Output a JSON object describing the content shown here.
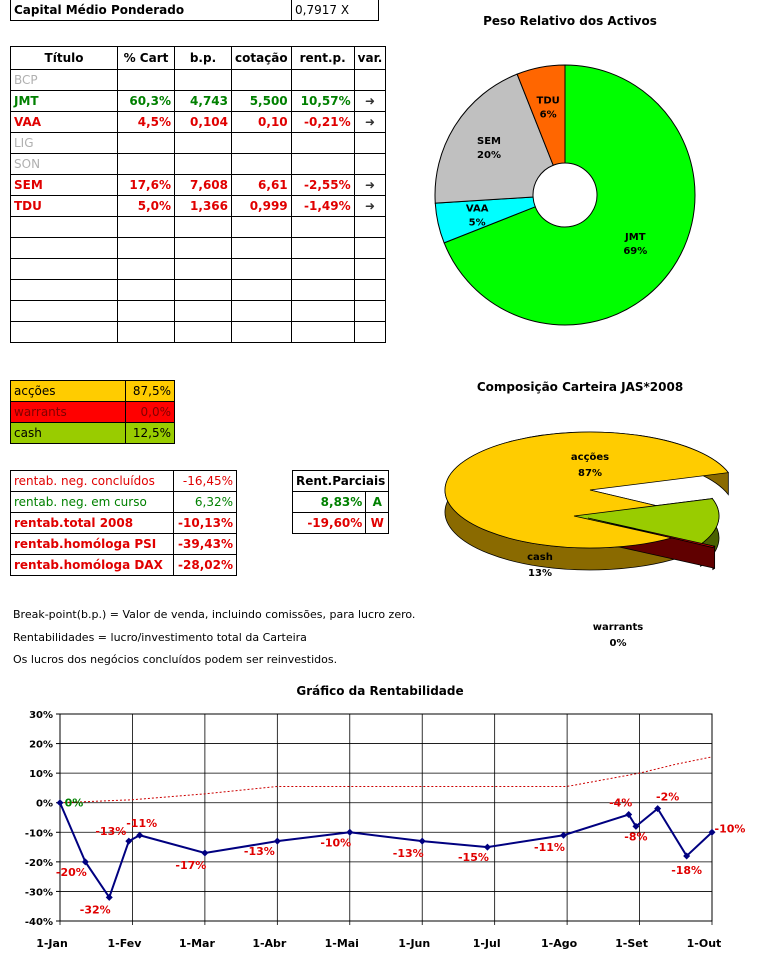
{
  "capital": {
    "label": "Capital Médio Ponderado",
    "value": "0,7917",
    "unit": "X"
  },
  "holdings": {
    "headers": [
      "Título",
      "% Cart",
      "b.p.",
      "cotação",
      "rent.p.",
      "var."
    ],
    "rows": [
      {
        "name": "BCP",
        "cart": "",
        "bp": "",
        "cot": "",
        "rent": "",
        "var": "",
        "style": "grey"
      },
      {
        "name": "JMT",
        "cart": "60,3%",
        "bp": "4,743",
        "cot": "5,500",
        "rent": "10,57%",
        "var": "➜",
        "style": "green"
      },
      {
        "name": "VAA",
        "cart": "4,5%",
        "bp": "0,104",
        "cot": "0,10",
        "rent": "-0,21%",
        "var": "➜",
        "style": "red"
      },
      {
        "name": "LIG",
        "cart": "",
        "bp": "",
        "cot": "",
        "rent": "",
        "var": "",
        "style": "grey"
      },
      {
        "name": "SON",
        "cart": "",
        "bp": "",
        "cot": "",
        "rent": "",
        "var": "",
        "style": "grey"
      },
      {
        "name": "SEM",
        "cart": "17,6%",
        "bp": "7,608",
        "cot": "6,61",
        "rent": "-2,55%",
        "var": "➜",
        "style": "red"
      },
      {
        "name": "TDU",
        "cart": "5,0%",
        "bp": "1,366",
        "cot": "0,999",
        "rent": "-1,49%",
        "var": "➜",
        "style": "red"
      }
    ],
    "empty_rows": 6
  },
  "allocation": [
    {
      "label": "acções",
      "value": "87,5%",
      "bg": "#ffcc00",
      "fg": "#000000"
    },
    {
      "label": "warrants",
      "value": "0,0%",
      "bg": "#ff0000",
      "fg": "#800000"
    },
    {
      "label": "cash",
      "value": "12,5%",
      "bg": "#99cc00",
      "fg": "#000000"
    }
  ],
  "returns": [
    {
      "label": "rentab. neg. concluídos",
      "value": "-16,45%",
      "color": "#e00000",
      "bold": false
    },
    {
      "label": "rentab. neg. em curso",
      "value": "6,32%",
      "color": "#008000",
      "bold": false
    },
    {
      "label": "rentab.total 2008",
      "value": "-10,13%",
      "color": "#e00000",
      "bold": true
    },
    {
      "label": "rentab.homóloga PSI",
      "value": "-39,43%",
      "color": "#e00000",
      "bold": true
    },
    {
      "label": "rentab.homóloga DAX",
      "value": "-28,02%",
      "color": "#e00000",
      "bold": true
    }
  ],
  "partials": {
    "title": "Rent.Parciais",
    "rows": [
      {
        "value": "8,83%",
        "tag": "A",
        "color": "#008000"
      },
      {
        "value": "-19,60%",
        "tag": "W",
        "color": "#e00000"
      }
    ]
  },
  "notes": [
    "Break-point(b.p.) = Valor de venda, incluindo comissões, para lucro zero.",
    "Rentabilidades = lucro/investimento total da Carteira",
    "Os lucros dos negócios concluídos podem ser reinvestidos."
  ],
  "chart_data": [
    {
      "type": "pie",
      "title": "Peso Relativo dos Activos",
      "labels": [
        "JMT",
        "VAA",
        "SEM",
        "TDU"
      ],
      "values": [
        69,
        5,
        20,
        6
      ],
      "value_labels": [
        "69%",
        "5%",
        "20%",
        "6%"
      ],
      "colors": [
        "#00ff00",
        "#00ffff",
        "#c0c0c0",
        "#ff6600"
      ],
      "donut": true
    },
    {
      "type": "pie",
      "title": "Composição Carteira JAS*2008",
      "labels": [
        "acções",
        "cash",
        "warrants"
      ],
      "values": [
        87,
        13,
        0
      ],
      "value_labels": [
        "87%",
        "13%",
        "0%"
      ],
      "colors": [
        "#ffcc00",
        "#99cc00",
        "#cc0000"
      ],
      "style": "3d-exploded"
    },
    {
      "type": "line",
      "title": "Gráfico da Rentabilidade",
      "x_ticks": [
        "1-Jan",
        "1-Fev",
        "1-Mar",
        "1-Abr",
        "1-Mai",
        "1-Jun",
        "1-Jul",
        "1-Ago",
        "1-Set",
        "1-Out"
      ],
      "ylim": [
        -40,
        30
      ],
      "y_ticks": [
        "30%",
        "20%",
        "10%",
        "0%",
        "-10%",
        "-20%",
        "-30%",
        "-40%"
      ],
      "grid": true,
      "series": [
        {
          "color": "#000080",
          "points": [
            {
              "x": 0,
              "y": 0,
              "label": "0%"
            },
            {
              "x": 0.35,
              "y": -20,
              "label": "-20%"
            },
            {
              "x": 0.68,
              "y": -32,
              "label": "-32%"
            },
            {
              "x": 0.95,
              "y": -13,
              "label": "-13%"
            },
            {
              "x": 1.1,
              "y": -11,
              "label": "-11%"
            },
            {
              "x": 2.0,
              "y": -17,
              "label": "-17%"
            },
            {
              "x": 3.0,
              "y": -13,
              "label": "-13%"
            },
            {
              "x": 4.0,
              "y": -10,
              "label": "-10%"
            },
            {
              "x": 5.0,
              "y": -13,
              "label": "-13%"
            },
            {
              "x": 5.9,
              "y": -15,
              "label": "-15%"
            },
            {
              "x": 6.95,
              "y": -11,
              "label": "-11%"
            },
            {
              "x": 7.85,
              "y": -4,
              "label": "-4%"
            },
            {
              "x": 7.95,
              "y": -8,
              "label": "-8%"
            },
            {
              "x": 8.25,
              "y": -2,
              "label": "-2%"
            },
            {
              "x": 8.65,
              "y": -18,
              "label": "-18%"
            },
            {
              "x": 9.0,
              "y": -10,
              "label": "-10%"
            }
          ]
        },
        {
          "color": "#cc0000",
          "dashed": true,
          "points": [
            {
              "x": 0,
              "y": 0
            },
            {
              "x": 1,
              "y": 1
            },
            {
              "x": 2,
              "y": 3
            },
            {
              "x": 3,
              "y": 5.5
            },
            {
              "x": 4,
              "y": 5.5
            },
            {
              "x": 5,
              "y": 5.5
            },
            {
              "x": 6,
              "y": 5.5
            },
            {
              "x": 7,
              "y": 5.5
            },
            {
              "x": 8,
              "y": 10
            },
            {
              "x": 8.5,
              "y": 13
            },
            {
              "x": 9,
              "y": 15.5
            }
          ]
        }
      ]
    }
  ]
}
